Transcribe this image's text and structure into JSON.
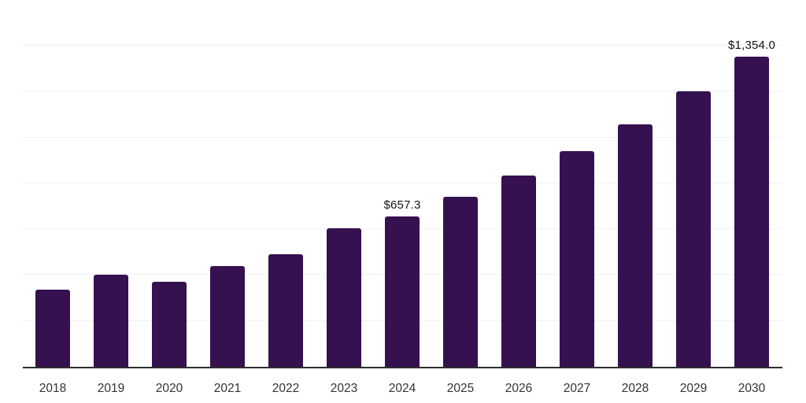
{
  "chart_data": {
    "type": "bar",
    "title": "",
    "xlabel": "",
    "ylabel": "",
    "categories": [
      "2018",
      "2019",
      "2020",
      "2021",
      "2022",
      "2023",
      "2024",
      "2025",
      "2026",
      "2027",
      "2028",
      "2029",
      "2030"
    ],
    "values": [
      338.0,
      403.0,
      372.0,
      440.5,
      489.7,
      605.0,
      657.3,
      742.5,
      835.0,
      940.0,
      1058.0,
      1202.0,
      1354.0
    ],
    "data_labels": [
      null,
      null,
      null,
      null,
      null,
      null,
      "$657.3",
      null,
      null,
      null,
      null,
      null,
      "$1,354.0"
    ],
    "ylim": [
      0,
      1600
    ],
    "gridline_step": 200,
    "grid": "horizontal-only",
    "legend_position": "none",
    "currency_prefix": "$",
    "colors": {
      "bar": "#351150",
      "gridline": "#f1f1f1",
      "axis_line": "#2e2e2e",
      "tick_label": "#333333",
      "data_label": "#141414",
      "background": "#ffffff"
    }
  }
}
